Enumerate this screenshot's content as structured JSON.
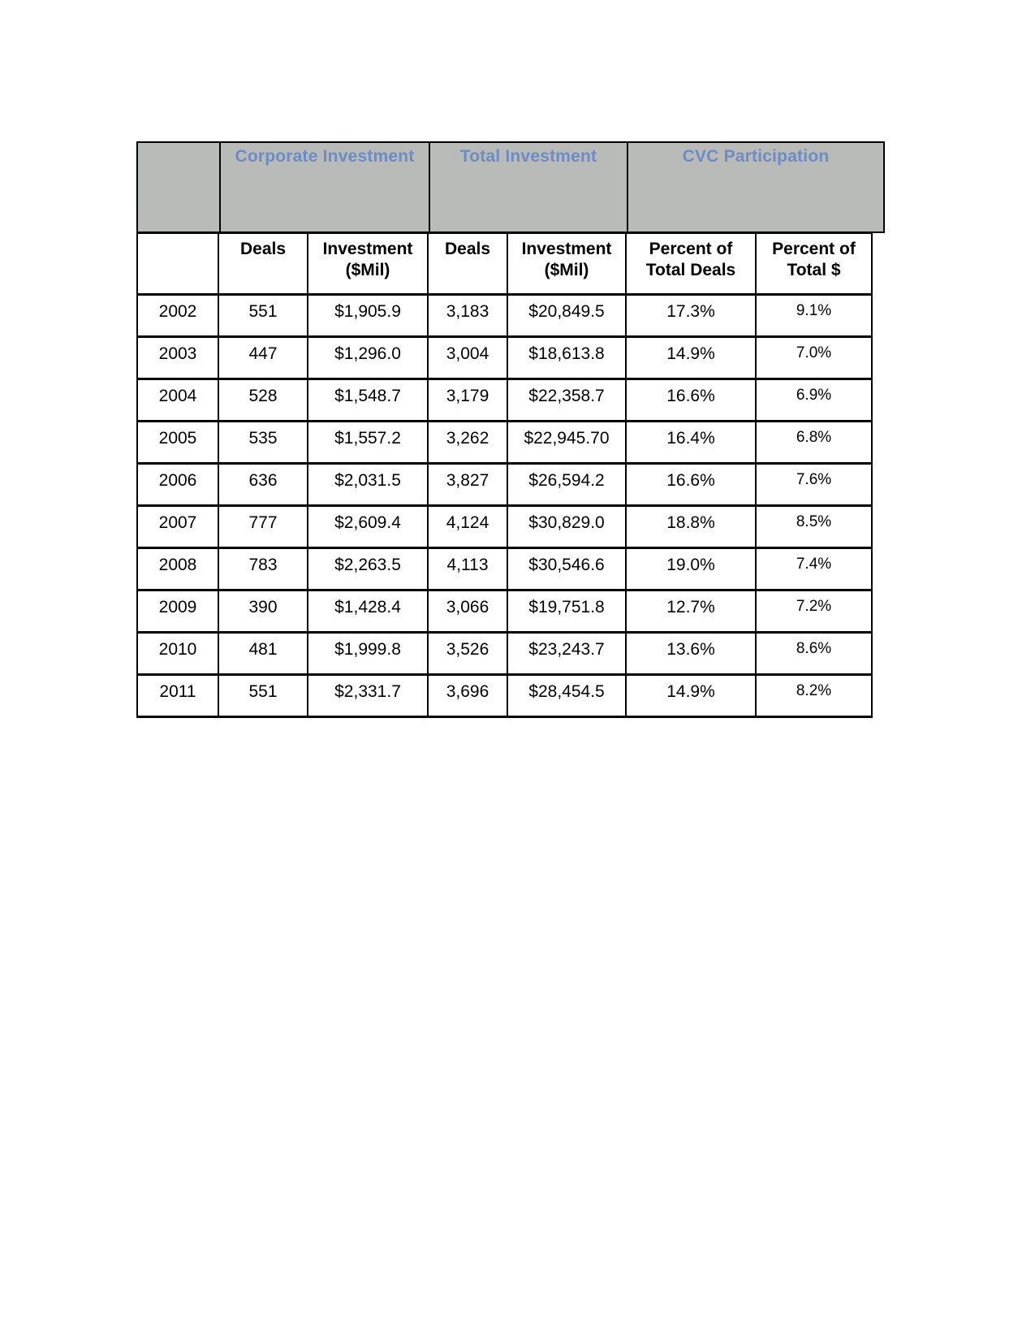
{
  "colors": {
    "page_background": "#ffffff",
    "band_background": "#b9bbb9",
    "band_text": "#6d8cc6",
    "border": "#000000",
    "cell_text": "#000000"
  },
  "table": {
    "group_headers": [
      {
        "label": "Corporate Investment"
      },
      {
        "label": "Total Investment"
      },
      {
        "label": "CVC Participation"
      }
    ],
    "columns": [
      "",
      "Deals",
      "Investment\n($Mil)",
      "Deals",
      "Investment\n($Mil)",
      "Percent of\nTotal Deals",
      "Percent of\nTotal $"
    ],
    "rows": [
      [
        "2002",
        "551",
        "$1,905.9",
        "3,183",
        "$20,849.5",
        "17.3%",
        "9.1%"
      ],
      [
        "2003",
        "447",
        "$1,296.0",
        "3,004",
        "$18,613.8",
        "14.9%",
        "7.0%"
      ],
      [
        "2004",
        "528",
        "$1,548.7",
        "3,179",
        "$22,358.7",
        "16.6%",
        "6.9%"
      ],
      [
        "2005",
        "535",
        "$1,557.2",
        "3,262",
        "$22,945.70",
        "16.4%",
        "6.8%"
      ],
      [
        "2006",
        "636",
        "$2,031.5",
        "3,827",
        "$26,594.2",
        "16.6%",
        "7.6%"
      ],
      [
        "2007",
        "777",
        "$2,609.4",
        "4,124",
        "$30,829.0",
        "18.8%",
        "8.5%"
      ],
      [
        "2008",
        "783",
        "$2,263.5",
        "4,113",
        "$30,546.6",
        "19.0%",
        "7.4%"
      ],
      [
        "2009",
        "390",
        "$1,428.4",
        "3,066",
        "$19,751.8",
        "12.7%",
        "7.2%"
      ],
      [
        "2010",
        "481",
        "$1,999.8",
        "3,526",
        "$23,243.7",
        "13.6%",
        "8.6%"
      ],
      [
        "2011",
        "551",
        "$2,331.7",
        "3,696",
        "$28,454.5",
        "14.9%",
        "8.2%"
      ]
    ]
  }
}
